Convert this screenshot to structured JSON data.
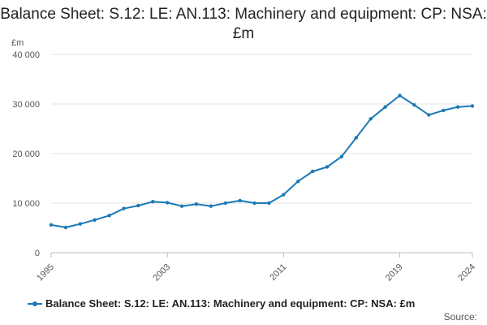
{
  "chart_data": {
    "type": "line",
    "title": "Balance Sheet: S.12: LE: AN.113: Machinery and equipment: CP: NSA: £m",
    "ylabel": "£m",
    "xlabel": "",
    "ylim": [
      0,
      40000
    ],
    "yticks": [
      "0",
      "10 000",
      "20 000",
      "30 000",
      "40 000"
    ],
    "ytick_values": [
      0,
      10000,
      20000,
      30000,
      40000
    ],
    "xticks": [
      "1995",
      "2003",
      "2011",
      "2019",
      "2024"
    ],
    "xtick_values": [
      1995,
      2003,
      2011,
      2019,
      2024
    ],
    "xlim": [
      1995,
      2024
    ],
    "grid": true,
    "legend_position": "bottom",
    "color": "#1a7ab5",
    "series": [
      {
        "name": "Balance Sheet: S.12: LE: AN.113: Machinery and equipment: CP: NSA: £m",
        "x": [
          1995,
          1996,
          1997,
          1998,
          1999,
          2000,
          2001,
          2002,
          2003,
          2004,
          2005,
          2006,
          2007,
          2008,
          2009,
          2010,
          2011,
          2012,
          2013,
          2014,
          2015,
          2016,
          2017,
          2018,
          2019,
          2020,
          2021,
          2022,
          2023,
          2024
        ],
        "values": [
          5600,
          5100,
          5800,
          6600,
          7500,
          8900,
          9500,
          10300,
          10100,
          9400,
          9800,
          9400,
          10000,
          10500,
          10000,
          10000,
          11700,
          14400,
          16400,
          17300,
          19400,
          23200,
          27000,
          29400,
          31700,
          29800,
          27800,
          28700,
          29400,
          29600
        ]
      }
    ]
  },
  "source_label": "Source:"
}
